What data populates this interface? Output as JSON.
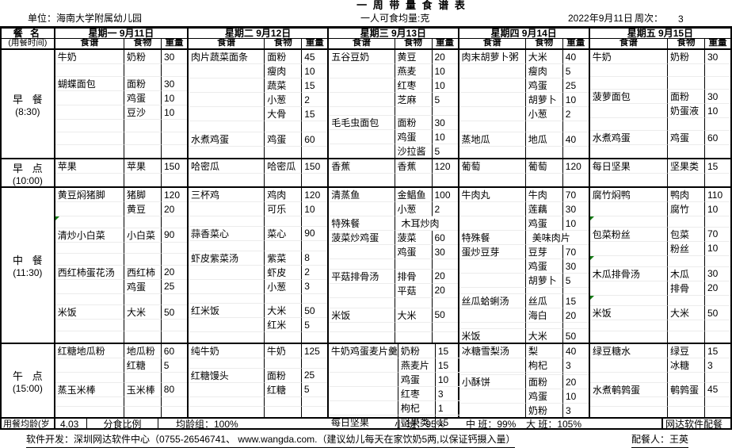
{
  "title": "一 周 带 量 食 谱 表",
  "info": {
    "unit": "单位：海南大学附属幼儿园",
    "per_person": "一人可食均量:克",
    "date": "2022年9月11日",
    "week_label": "周次：",
    "week_value": "3"
  },
  "table": {
    "meal_header": "餐  名",
    "meal_subheader": "(用餐时间)",
    "days": [
      "星期一 9月11日",
      "星期二 9月12日",
      "星期三 9月13日",
      "星期四 9月14日",
      "星期五 9月15日"
    ],
    "sub_headers": [
      "食谱",
      "食物",
      "重量"
    ],
    "sections": [
      {
        "meal": "早 餐",
        "time": "(8:30)",
        "row_count": 8,
        "days": [
          {
            "lines": [
              {
                "r": 1,
                "dish": "牛奶",
                "food": "奶粉",
                "wt": "30"
              },
              {
                "r": 3,
                "dish": "蝴蝶面包",
                "food": "面粉",
                "wt": "30"
              },
              {
                "r": 4,
                "food": "鸡蛋",
                "wt": "10"
              },
              {
                "r": 5,
                "food": "豆沙",
                "wt": "10"
              }
            ]
          },
          {
            "lines": [
              {
                "r": 1,
                "dish": "肉片蔬菜面条",
                "food": "面粉",
                "wt": "45"
              },
              {
                "r": 2,
                "food": "瘦肉",
                "wt": "10"
              },
              {
                "r": 3,
                "food": "蔬菜",
                "wt": "15"
              },
              {
                "r": 4,
                "food": "小葱",
                "wt": "2"
              },
              {
                "r": 5,
                "food": "大骨",
                "wt": "15"
              },
              {
                "r": 7,
                "dish": "水煮鸡蛋",
                "food": "鸡蛋",
                "wt": "60"
              }
            ]
          },
          {
            "lines": [
              {
                "r": 1,
                "dish": "五谷豆奶",
                "food": "黄豆",
                "wt": "20"
              },
              {
                "r": 2,
                "food": "燕麦",
                "wt": "10"
              },
              {
                "r": 3,
                "food": "红枣",
                "wt": "10"
              },
              {
                "r": 4,
                "food": "芝麻",
                "wt": "5"
              },
              {
                "r": 6,
                "dish": "毛毛虫面包",
                "food": "面粉",
                "wt": "30"
              },
              {
                "r": 7,
                "food": "鸡蛋",
                "wt": "10"
              },
              {
                "r": 8,
                "food": "沙拉酱",
                "wt": "5"
              }
            ]
          },
          {
            "lines": [
              {
                "r": 1,
                "dish": "肉末胡萝卜粥",
                "food": "大米",
                "wt": "40"
              },
              {
                "r": 2,
                "food": "瘦肉",
                "wt": "5"
              },
              {
                "r": 3,
                "food": "鸡蛋",
                "wt": "25"
              },
              {
                "r": 4,
                "food": "胡萝卜",
                "wt": "10"
              },
              {
                "r": 5,
                "food": "小葱",
                "wt": "2"
              },
              {
                "r": 7,
                "dish": "蒸地瓜",
                "food": "地瓜",
                "wt": "40"
              }
            ]
          },
          {
            "lines": [
              {
                "r": 1,
                "dish": "牛奶",
                "food": "奶粉",
                "wt": "30"
              },
              {
                "r": 4,
                "dish": "菠萝面包",
                "food": "面粉",
                "wt": "30"
              },
              {
                "r": 5,
                "food": "奶蛋液",
                "wt": "10"
              },
              {
                "r": 7,
                "dish": "水煮鸡蛋",
                "food": "鸡蛋",
                "wt": "60"
              }
            ]
          }
        ]
      },
      {
        "meal": "早 点",
        "time": "(10:00)",
        "row_count": 2,
        "days": [
          {
            "lines": [
              {
                "r": 1,
                "dish": "苹果",
                "food": "苹果",
                "wt": "150"
              }
            ]
          },
          {
            "lines": [
              {
                "r": 1,
                "dish": "哈密瓜",
                "food": "哈密瓜",
                "wt": "150"
              }
            ]
          },
          {
            "lines": [
              {
                "r": 1,
                "dish": "香蕉",
                "food": "香蕉",
                "wt": "120"
              }
            ]
          },
          {
            "lines": [
              {
                "r": 1,
                "dish": "葡萄",
                "food": "葡萄",
                "wt": "120"
              }
            ]
          },
          {
            "lines": [
              {
                "r": 1,
                "dish": "每日坚果",
                "food": "坚果类",
                "wt": "15"
              }
            ]
          }
        ]
      },
      {
        "meal": "中 餐",
        "time": "(11:30)",
        "row_count": 12,
        "days": [
          {
            "lines": [
              {
                "r": 1,
                "dish": "黄豆焖猪脚",
                "food": "猪脚",
                "wt": "120"
              },
              {
                "r": 2,
                "food": "黄豆",
                "wt": "20"
              },
              {
                "r": 4,
                "dish": "清炒小白菜",
                "food": "小白菜",
                "wt": "90"
              },
              {
                "r": 7,
                "dish": "西红柿蛋花汤",
                "food": "西红柿",
                "wt": "20"
              },
              {
                "r": 8,
                "food": "鸡蛋",
                "wt": "25"
              },
              {
                "r": 10,
                "dish": "米饭",
                "food": "大米",
                "wt": "50"
              }
            ],
            "markers": [
              3
            ]
          },
          {
            "lines": [
              {
                "r": 1,
                "dish": "三杯鸡",
                "food": "鸡肉",
                "wt": "120"
              },
              {
                "r": 2,
                "food": "可乐",
                "wt": "10"
              },
              {
                "r": 4,
                "dish": "蒜香菜心",
                "food": "菜心",
                "wt": "90"
              },
              {
                "r": 6,
                "dish": "虾皮紫菜汤",
                "food": "紫菜",
                "wt": "8"
              },
              {
                "r": 7,
                "food": "虾皮",
                "wt": "2"
              },
              {
                "r": 8,
                "food": "小葱",
                "wt": "3"
              },
              {
                "r": 10,
                "dish": "红米饭",
                "food": "大米",
                "wt": "50"
              },
              {
                "r": 11,
                "food": "红米",
                "wt": "5"
              }
            ]
          },
          {
            "lines": [
              {
                "r": 1,
                "dish": "清蒸鱼",
                "food": "金鲳鱼",
                "wt": "100"
              },
              {
                "r": 2,
                "food": "小葱",
                "wt": "2"
              },
              {
                "r": 3,
                "dish": "特殊餐",
                "span": "木耳炒肉"
              },
              {
                "r": 4,
                "dish": "菠菜炒鸡蛋",
                "food": "菠菜",
                "wt": "60"
              },
              {
                "r": 5,
                "food": "鸡蛋",
                "wt": "30"
              },
              {
                "r": 7,
                "dish": "平菇排骨汤",
                "food": "排骨",
                "wt": "20"
              },
              {
                "r": 8,
                "food": "平菇",
                "wt": "20"
              },
              {
                "r": 10,
                "dish": "米饭",
                "food": "大米",
                "wt": "50"
              }
            ]
          },
          {
            "lines": [
              {
                "r": 1,
                "dish": "牛肉丸",
                "food": "牛肉",
                "wt": "70"
              },
              {
                "r": 2,
                "food": "莲藕",
                "wt": "30"
              },
              {
                "r": 3,
                "food": "鸡蛋",
                "wt": "10"
              },
              {
                "r": 4,
                "dish": "特殊餐",
                "span": "美味肉片"
              },
              {
                "r": 5,
                "dish": "蛋炒豆芽",
                "food": "豆芽",
                "wt": "70"
              },
              {
                "r": 6,
                "food": "鸡蛋",
                "wt": "30"
              },
              {
                "r": 7,
                "food": "胡萝卜",
                "wt": "5"
              },
              {
                "r": 9,
                "dish": "丝瓜蛤蜊汤",
                "food": "丝瓜",
                "wt": "15"
              },
              {
                "r": 10,
                "food": "海白",
                "wt": "20"
              },
              {
                "r": 12,
                "dish": "米饭",
                "food": "大米",
                "wt": "50"
              }
            ]
          },
          {
            "lines": [
              {
                "r": 1,
                "dish": "腐竹焖鸭",
                "food": "鸭肉",
                "wt": "110"
              },
              {
                "r": 2,
                "food": "腐竹",
                "wt": "10"
              },
              {
                "r": 4,
                "dish": "包菜粉丝",
                "food": "包菜",
                "wt": "70"
              },
              {
                "r": 5,
                "food": "粉丝",
                "wt": "10"
              },
              {
                "r": 7,
                "dish": "木瓜排骨汤",
                "food": "木瓜",
                "wt": "30"
              },
              {
                "r": 8,
                "food": "排骨",
                "wt": "20"
              },
              {
                "r": 10,
                "dish": "米饭",
                "food": "大米",
                "wt": "50"
              }
            ],
            "markers": [
              3,
              6,
              9
            ]
          }
        ]
      },
      {
        "meal": "午 点",
        "time": "(15:00)",
        "row_count": 6,
        "days": [
          {
            "lines": [
              {
                "r": 1,
                "dish": "红糖地瓜粉",
                "food": "地瓜粉",
                "wt": "60"
              },
              {
                "r": 2,
                "food": "红糖",
                "wt": "5"
              },
              {
                "r": 4,
                "dish": "蒸玉米棒",
                "food": "玉米棒",
                "wt": "80"
              }
            ]
          },
          {
            "lines": [
              {
                "r": 1,
                "dish": "纯牛奶",
                "food": "牛奶",
                "wt": "125"
              },
              {
                "r": 3,
                "dish": "红糖馒头",
                "food": "面粉",
                "wt": "25"
              },
              {
                "r": 4,
                "food": "红糖",
                "wt": "5"
              }
            ]
          },
          {
            "lines": [
              {
                "r": 1,
                "dish": "牛奶鸡蛋麦片羹",
                "food": "奶粉",
                "wt": "15"
              },
              {
                "r": 2,
                "food": "燕麦片",
                "wt": "15"
              },
              {
                "r": 3,
                "food": "鸡蛋",
                "wt": "10"
              },
              {
                "r": 4,
                "food": "红枣",
                "wt": "3"
              },
              {
                "r": 5,
                "food": "枸杞",
                "wt": "1"
              },
              {
                "r": 6,
                "dish": "每日坚果",
                "food": "坚果类",
                "wt": "15"
              }
            ]
          },
          {
            "lines": [
              {
                "r": 1,
                "dish": "冰糖雪梨汤",
                "food": "梨",
                "wt": "40"
              },
              {
                "r": 2,
                "food": "枸杞",
                "wt": "3"
              },
              {
                "r": 4,
                "dish": "小酥饼",
                "food": "面粉",
                "wt": "20"
              },
              {
                "r": 5,
                "food": "鸡蛋",
                "wt": "10"
              },
              {
                "r": 6,
                "food": "奶粉",
                "wt": "3"
              }
            ]
          },
          {
            "lines": [
              {
                "r": 1,
                "dish": "绿豆糖水",
                "food": "绿豆",
                "wt": "15"
              },
              {
                "r": 2,
                "food": "冰糖",
                "wt": "3"
              },
              {
                "r": 4,
                "dish": "水煮鹌鹑蛋",
                "food": "鹌鹑蛋",
                "wt": "45"
              }
            ]
          }
        ]
      }
    ],
    "summary": {
      "age_label": "用餐均龄(岁",
      "age_value": "4.03",
      "share_label": "分食比例",
      "avg_label": "均龄组：100%",
      "class_small": "小 班：95%",
      "class_middle": "中 班：99%",
      "class_big": "大 班：105%",
      "software": "网达软件配餐"
    }
  },
  "footer": {
    "dev_note": "软件开发：深圳网达软件中心（0755-26546741、  www.wangda.com.（建议幼儿每天在家饮奶5两,以保证钙摄入量）",
    "preparer": "配餐人：王英"
  }
}
